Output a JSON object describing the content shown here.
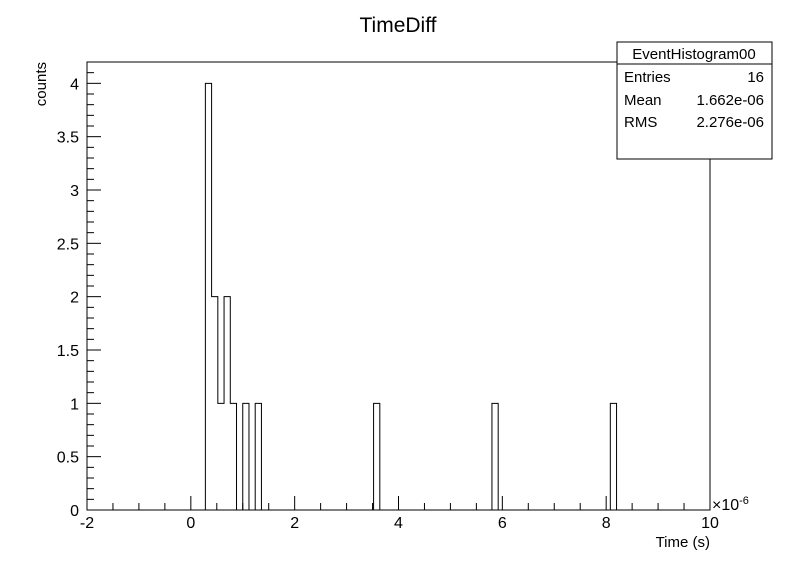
{
  "chart_data": {
    "type": "bar",
    "title": "TimeDiff",
    "xlabel": "Time (s)",
    "ylabel": "counts",
    "x_exponent_label": "×10",
    "x_exponent_power": "-6",
    "xlim": [
      -2,
      10
    ],
    "ylim": [
      0,
      4.2
    ],
    "x_scale_note": "x in units of 1e-6 s",
    "x_ticks": [
      "-2",
      "0",
      "2",
      "4",
      "6",
      "8",
      "10"
    ],
    "y_ticks": [
      "0",
      "0.5",
      "1",
      "1.5",
      "2",
      "2.5",
      "3",
      "3.5",
      "4"
    ],
    "bin_width": 0.12,
    "bins": [
      {
        "x": 0.28,
        "count": 4
      },
      {
        "x": 0.4,
        "count": 2
      },
      {
        "x": 0.52,
        "count": 1
      },
      {
        "x": 0.64,
        "count": 2
      },
      {
        "x": 0.76,
        "count": 1
      },
      {
        "x": 1.0,
        "count": 1
      },
      {
        "x": 1.24,
        "count": 1
      },
      {
        "x": 3.52,
        "count": 1
      },
      {
        "x": 5.8,
        "count": 1
      },
      {
        "x": 8.08,
        "count": 1
      }
    ],
    "grid": false,
    "legend_placement": "top-right"
  },
  "stats_box": {
    "name": "EventHistogram00",
    "rows": [
      {
        "label": "Entries",
        "value": "16"
      },
      {
        "label": "Mean",
        "value": "1.662e-06"
      },
      {
        "label": "RMS",
        "value": "2.276e-06"
      }
    ]
  }
}
